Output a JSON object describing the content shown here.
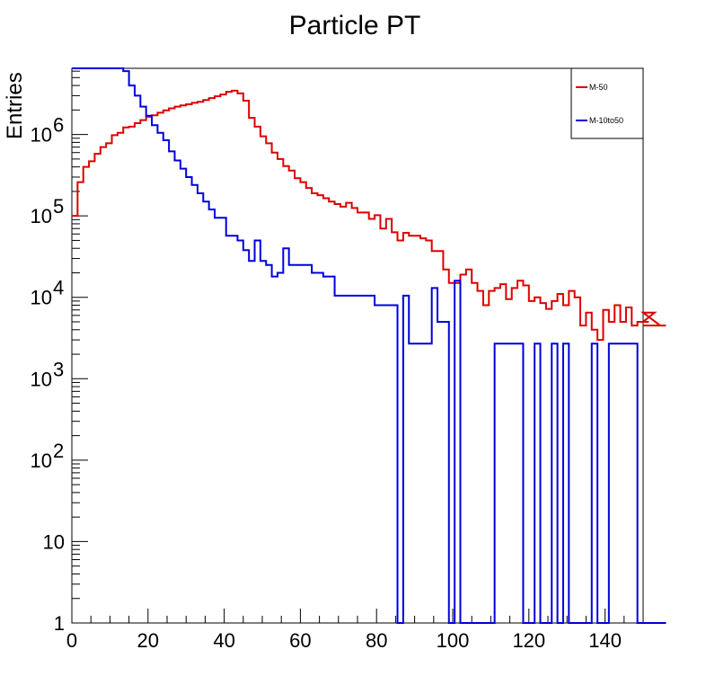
{
  "chart_data": {
    "type": "histogram",
    "title": "Particle PT",
    "xlabel": "",
    "ylabel": "Entries",
    "xlim": [
      0,
      150
    ],
    "ylim": [
      1,
      6500000
    ],
    "yscale": "log",
    "bin_width": 1.5,
    "x_ticks": [
      0,
      20,
      40,
      60,
      80,
      100,
      120,
      140
    ],
    "y_ticks": [
      {
        "value": 1,
        "label": "1"
      },
      {
        "value": 10,
        "label": "10"
      },
      {
        "value": 100,
        "label": "10",
        "exp": "2"
      },
      {
        "value": 1000,
        "label": "10",
        "exp": "3"
      },
      {
        "value": 10000,
        "label": "10",
        "exp": "4"
      },
      {
        "value": 100000,
        "label": "10",
        "exp": "5"
      },
      {
        "value": 1000000,
        "label": "10",
        "exp": "6"
      }
    ],
    "legend": {
      "position": "top-right"
    },
    "grid": false,
    "series": [
      {
        "name": "M-50",
        "color": "#dd0000",
        "values": [
          100000,
          260000,
          400000,
          470000,
          580000,
          700000,
          780000,
          980000,
          1050000,
          1220000,
          1250000,
          1380000,
          1500000,
          1650000,
          1720000,
          1850000,
          1980000,
          2100000,
          2200000,
          2280000,
          2350000,
          2450000,
          2520000,
          2650000,
          2800000,
          2950000,
          3100000,
          3350000,
          3450000,
          3200000,
          2600000,
          1600000,
          1250000,
          950000,
          780000,
          600000,
          500000,
          410000,
          360000,
          290000,
          260000,
          220000,
          190000,
          180000,
          165000,
          150000,
          140000,
          130000,
          145000,
          125000,
          110000,
          110000,
          92000,
          102000,
          70000,
          92000,
          63000,
          50000,
          62000,
          57000,
          57000,
          53000,
          50000,
          37000,
          37000,
          22000,
          15000,
          15000,
          19000,
          22000,
          15000,
          12000,
          8000,
          12000,
          13000,
          14500,
          9500,
          13000,
          16000,
          14000,
          9000,
          10000,
          8500,
          7200,
          9000,
          11000,
          8000,
          12000,
          10000,
          4500,
          6500,
          4000,
          3000,
          7000,
          5000,
          8000,
          5000,
          7500,
          4500,
          5000,
          5000,
          5000,
          6500,
          4500,
          4500
        ]
      },
      {
        "name": "M-10to50",
        "color": "#0000dd",
        "values": [
          6500000,
          6500000,
          6500000,
          6500000,
          6500000,
          6500000,
          6500000,
          6500000,
          6500000,
          6000000,
          4000000,
          3000000,
          2200000,
          1700000,
          1300000,
          1050000,
          850000,
          620000,
          480000,
          380000,
          300000,
          240000,
          190000,
          150000,
          120000,
          95000,
          95000,
          57000,
          57000,
          50000,
          38000,
          28000,
          50000,
          28000,
          25000,
          18000,
          20000,
          40000,
          25000,
          25000,
          25000,
          25000,
          20000,
          20000,
          18000,
          18000,
          10500,
          10500,
          10500,
          10500,
          10500,
          10500,
          10500,
          8000,
          8000,
          8000,
          8000,
          1,
          10500,
          2700,
          2700,
          2700,
          2700,
          13000,
          5000,
          5000,
          1,
          16000,
          1,
          1,
          1,
          1,
          1,
          1,
          2700,
          2700,
          2700,
          2700,
          2700,
          1,
          1,
          2700,
          1,
          1,
          2700,
          1,
          2700,
          1,
          1,
          1,
          1,
          2700,
          1,
          1,
          2700,
          2700,
          2700,
          2700,
          2700,
          1,
          1,
          1,
          1,
          1,
          1
        ]
      }
    ]
  }
}
